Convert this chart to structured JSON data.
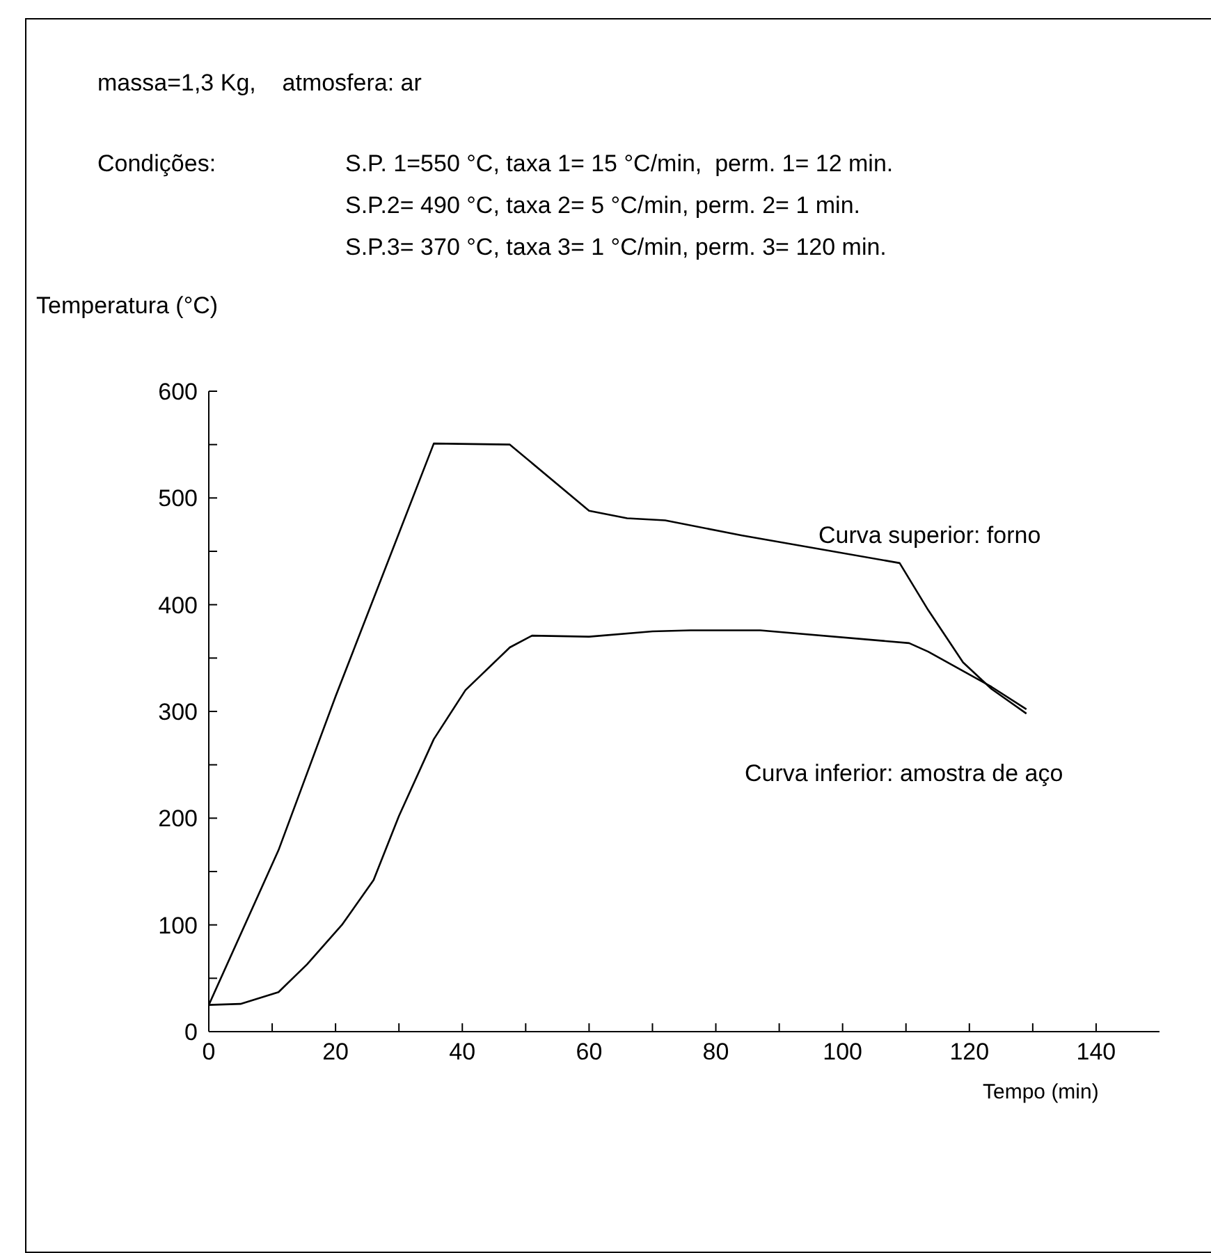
{
  "chart_data": {
    "type": "line",
    "xlabel": "Tempo (min)",
    "ylabel": "Temperatura (°C)",
    "annotations": [
      "massa=1,3 Kg,    atmosfera: ar",
      "Condições:",
      "S.P. 1=550 °C, taxa 1= 15 °C/min,  perm. 1= 12 min.",
      "S.P.2= 490 °C, taxa 2= 5 °C/min, perm. 2= 1 min.",
      "S.P.3= 370 °C, taxa 3= 1 °C/min, perm. 3= 120 min."
    ],
    "xlim": [
      0,
      150
    ],
    "xticks": [
      0,
      {
        "value": 10,
        "label": null
      },
      20,
      {
        "value": 30,
        "label": null
      },
      40,
      {
        "value": 50,
        "label": null
      },
      60,
      {
        "value": 70,
        "label": null
      },
      80,
      {
        "value": 90,
        "label": null
      },
      100,
      {
        "value": 110,
        "label": null
      },
      120,
      {
        "value": 130,
        "label": null
      },
      140
    ],
    "ylim": [
      0,
      600
    ],
    "yticks": [
      0,
      {
        "value": 50,
        "label": null
      },
      100,
      {
        "value": 150,
        "label": null
      },
      200,
      {
        "value": 250,
        "label": null
      },
      300,
      {
        "value": 350,
        "label": null
      },
      400,
      {
        "value": 450,
        "label": null
      },
      500,
      {
        "value": 550,
        "label": null
      },
      600
    ],
    "grid": false,
    "marker": "none",
    "line_style": "solid",
    "series": [
      {
        "name": "Curva superior: forno",
        "color": "#000000",
        "x": [
          0,
          11,
          20,
          35.5,
          47.5,
          60,
          66,
          72,
          84,
          109,
          113.5,
          119,
          123.5,
          129
        ],
        "values": [
          25,
          170,
          314,
          551,
          550,
          488,
          481,
          479,
          465,
          439,
          395,
          346,
          321,
          298
        ]
      },
      {
        "name": "Curva inferior: amostra de aço",
        "color": "#000000",
        "x": [
          0,
          5,
          11,
          15.5,
          21,
          26,
          30,
          35.5,
          40.5,
          47.5,
          51,
          60,
          70,
          76,
          87,
          110.5,
          113.5,
          123.5,
          129
        ],
        "values": [
          25,
          26,
          37,
          63,
          100,
          142,
          202,
          274,
          320,
          360,
          371,
          370,
          375,
          376,
          376,
          364,
          356,
          323,
          302
        ]
      }
    ]
  }
}
